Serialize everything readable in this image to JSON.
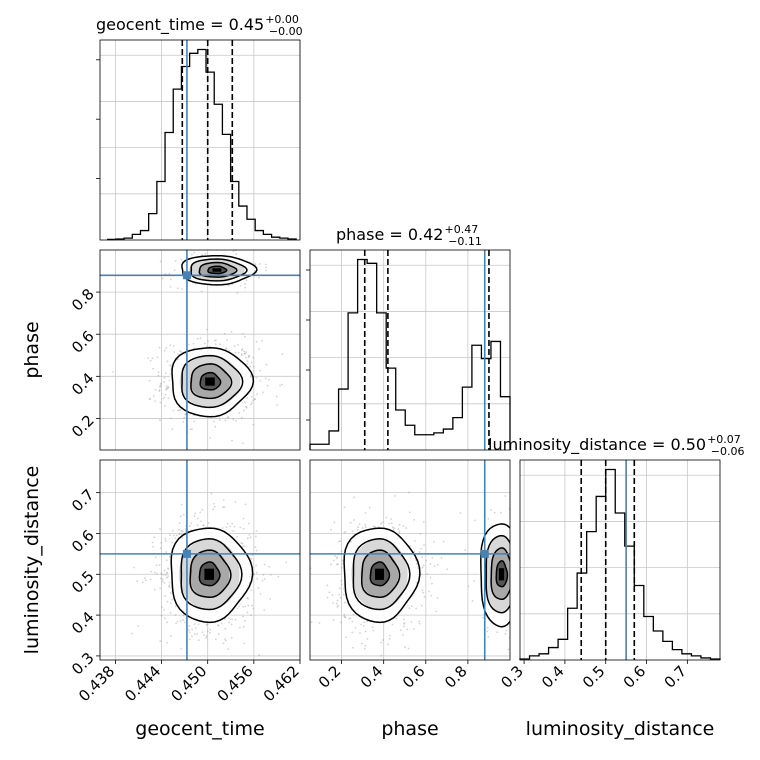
{
  "colors": {
    "truth": "#4682b4",
    "ink": "#000000",
    "scatter": "#9e9e9e",
    "grid": "#c8c8c8"
  },
  "chart_data": {
    "type": "corner",
    "grid": true,
    "parameters": [
      {
        "name": "geocent_time",
        "label": "geocent_time",
        "title_prefix": "geocent_time = ",
        "median": "0.45",
        "upper": "+0.00",
        "lower": "−0.00",
        "range": [
          0.436,
          0.462
        ],
        "ticks": [
          0.438,
          0.444,
          0.45,
          0.456,
          0.462
        ],
        "tick_labels": [
          "0.438",
          "0.444",
          "0.450",
          "0.456",
          "0.462"
        ],
        "truth": 0.4473,
        "quantiles": [
          0.4467,
          0.45,
          0.4532
        ],
        "hist": {
          "edges_range": [
            0.437,
            0.4615
          ],
          "counts": [
            0.3,
            0.5,
            1,
            3,
            5,
            14,
            31,
            57,
            80,
            92,
            99,
            101,
            89,
            72,
            56,
            31,
            18,
            11,
            5,
            3,
            1.5,
            1,
            0.5
          ]
        }
      },
      {
        "name": "phase",
        "label": "phase",
        "title_prefix": "phase = ",
        "median": "0.42",
        "upper": "+0.47",
        "lower": "−0.11",
        "range": [
          0.05,
          1.0
        ],
        "ticks": [
          0.2,
          0.4,
          0.6,
          0.8
        ],
        "tick_labels": [
          "0.2",
          "0.4",
          "0.6",
          "0.8"
        ],
        "truth": 0.88,
        "quantiles": [
          0.31,
          0.42,
          0.9
        ],
        "hist": {
          "edges_range": [
            0.05,
            1.0
          ],
          "counts": [
            3,
            3,
            10,
            32,
            72,
            100,
            98,
            72,
            43,
            21,
            13,
            8,
            8,
            9,
            11,
            17,
            33,
            55,
            48,
            57,
            28
          ]
        }
      },
      {
        "name": "luminosity_distance",
        "label": "luminosity_distance",
        "title_prefix": "luminosity_distance = ",
        "median": "0.50",
        "upper": "+0.07",
        "lower": "−0.06",
        "range": [
          0.29,
          0.78
        ],
        "ticks": [
          0.3,
          0.4,
          0.5,
          0.6,
          0.7
        ],
        "tick_labels": [
          "0.3",
          "0.4",
          "0.5",
          "0.6",
          "0.7"
        ],
        "truth": 0.55,
        "quantiles": [
          0.44,
          0.5,
          0.57
        ],
        "hist": {
          "edges_range": [
            0.29,
            0.78
          ],
          "counts": [
            0.5,
            2,
            3,
            6,
            10,
            25,
            42,
            62,
            79,
            92,
            71,
            55,
            36,
            21,
            14,
            9,
            5,
            3,
            2,
            1,
            0.5
          ]
        }
      }
    ],
    "pairs": [
      {
        "x": "geocent_time",
        "y": "phase",
        "modes": [
          {
            "cx": 0.4503,
            "cy": 0.375,
            "sx": 0.0025,
            "sy": 0.078,
            "w": 0.78
          },
          {
            "cx": 0.4512,
            "cy": 0.905,
            "sx": 0.0023,
            "sy": 0.033,
            "w": 0.22
          }
        ]
      },
      {
        "x": "geocent_time",
        "y": "luminosity_distance",
        "modes": [
          {
            "cx": 0.4502,
            "cy": 0.5,
            "sx": 0.0025,
            "sy": 0.055,
            "w": 1.0
          }
        ]
      },
      {
        "x": "phase",
        "y": "luminosity_distance",
        "modes": [
          {
            "cx": 0.38,
            "cy": 0.5,
            "sx": 0.085,
            "sy": 0.055,
            "w": 0.8
          },
          {
            "cx": 0.96,
            "cy": 0.5,
            "sx": 0.05,
            "sy": 0.06,
            "w": 0.2
          }
        ]
      }
    ]
  }
}
